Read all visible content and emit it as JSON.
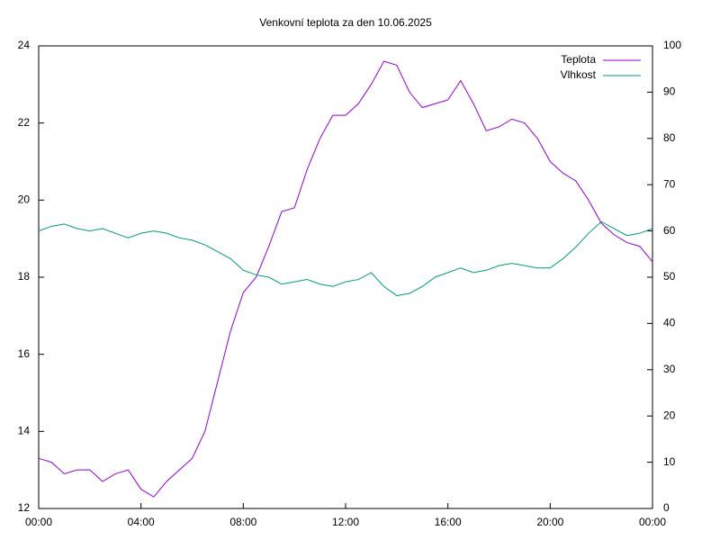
{
  "chart_data": {
    "type": "line",
    "title": "Venkovní teplota za den 10.06.2025",
    "x": [
      0,
      0.5,
      1,
      1.5,
      2,
      2.5,
      3,
      3.5,
      4,
      4.5,
      5,
      5.5,
      6,
      6.5,
      7,
      7.5,
      8,
      8.5,
      9,
      9.5,
      10,
      10.5,
      11,
      11.5,
      12,
      12.5,
      13,
      13.5,
      14,
      14.5,
      15,
      15.5,
      16,
      16.5,
      17,
      17.5,
      18,
      18.5,
      19,
      19.5,
      20,
      20.5,
      21,
      21.5,
      22,
      22.5,
      23,
      23.5,
      24
    ],
    "series": [
      {
        "name": "Teplota",
        "color": "#9400d3",
        "values": [
          13.3,
          13.2,
          12.9,
          13.0,
          13.0,
          12.7,
          12.9,
          13.0,
          12.5,
          12.3,
          12.7,
          13.0,
          13.3,
          14.0,
          15.3,
          16.6,
          17.6,
          18.0,
          18.8,
          19.7,
          19.8,
          20.8,
          21.6,
          22.2,
          22.2,
          22.5,
          23.0,
          23.6,
          23.5,
          22.8,
          22.4,
          22.5,
          22.6,
          23.1,
          22.5,
          21.8,
          21.9,
          22.1,
          22.0,
          21.6,
          21.0,
          20.7,
          20.5,
          20.0,
          19.4,
          19.1,
          18.9,
          18.8,
          18.4
        ]
      },
      {
        "name": "Vlhkost",
        "color": "#009e73",
        "axis": "y2",
        "values": [
          60,
          61,
          61.5,
          60.5,
          60,
          60.5,
          59.5,
          58.5,
          59.5,
          60,
          59.5,
          58.5,
          58,
          57,
          55.5,
          54,
          51.5,
          50.5,
          50,
          48.5,
          49,
          49.5,
          48.5,
          48,
          49,
          49.5,
          51,
          48,
          46,
          46.5,
          48,
          50,
          51,
          52,
          51,
          51.5,
          52.5,
          53,
          52.5,
          52,
          52,
          54,
          56.5,
          59.5,
          62,
          60.5,
          59,
          59.5,
          60.5
        ]
      }
    ],
    "xlim": [
      0,
      24
    ],
    "xticks": [
      {
        "value": 0,
        "label": "00:00"
      },
      {
        "value": 4,
        "label": "04:00"
      },
      {
        "value": 8,
        "label": "08:00"
      },
      {
        "value": 12,
        "label": "12:00"
      },
      {
        "value": 16,
        "label": "16:00"
      },
      {
        "value": 20,
        "label": "20:00"
      },
      {
        "value": 24,
        "label": "00:00"
      }
    ],
    "ylim": [
      12,
      24
    ],
    "yticks": [
      12,
      14,
      16,
      18,
      20,
      22,
      24
    ],
    "y2lim": [
      0,
      100
    ],
    "y2ticks": [
      0,
      10,
      20,
      30,
      40,
      50,
      60,
      70,
      80,
      90,
      100
    ],
    "legend": "top-right"
  }
}
